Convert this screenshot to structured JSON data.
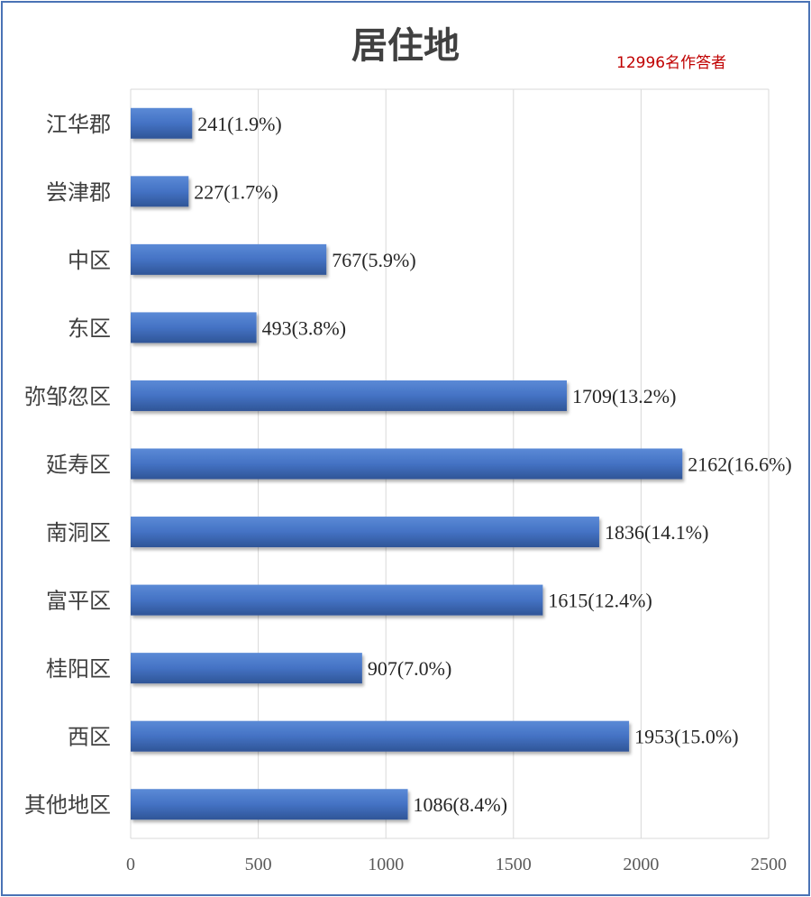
{
  "chart_data": {
    "type": "bar",
    "orientation": "horizontal",
    "title": "居住地",
    "annotation": "12996名作答者",
    "categories": [
      "江华郡",
      "尝津郡",
      "中区",
      "东区",
      "弥邹忽区",
      "延寿区",
      "南洞区",
      "富平区",
      "桂阳区",
      "西区",
      "其他地区"
    ],
    "values": [
      241,
      227,
      767,
      493,
      1709,
      2162,
      1836,
      1615,
      907,
      1953,
      1086
    ],
    "data_labels": [
      "241(1.9%)",
      "227(1.7%)",
      "767(5.9%)",
      "493(3.8%)",
      "1709(13.2%)",
      "2162(16.6%)",
      "1836(14.1%)",
      "1615(12.4%)",
      "907(7.0%)",
      "1953(15.0%)",
      "1086(8.4%)"
    ],
    "x_ticks": [
      "0",
      "500",
      "1000",
      "1500",
      "2000",
      "2500"
    ],
    "xlim": [
      0,
      2500
    ],
    "grid": true,
    "legend": "none",
    "bar_color": "#4472c4",
    "xlabel": "",
    "ylabel": ""
  }
}
